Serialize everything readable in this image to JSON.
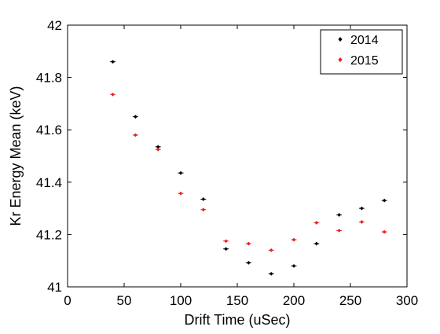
{
  "chart_data": {
    "type": "scatter",
    "title": "",
    "xlabel": "Drift Time (uSec)",
    "ylabel": "Kr Energy Mean (keV)",
    "xlim": [
      0,
      300
    ],
    "ylim": [
      41,
      42
    ],
    "xticks": [
      0,
      50,
      100,
      150,
      200,
      250,
      300
    ],
    "yticks": [
      41,
      41.2,
      41.4,
      41.6,
      41.8,
      42
    ],
    "xtick_labels": [
      "0",
      "50",
      "100",
      "150",
      "200",
      "250",
      "300"
    ],
    "ytick_labels": [
      "41",
      "41.2",
      "41.4",
      "41.6",
      "41.8",
      "42"
    ],
    "grid": false,
    "legend_position": "top-right",
    "series": [
      {
        "name": "2014",
        "color": "#000000",
        "marker": "diamond",
        "x": [
          40,
          60,
          80,
          100,
          120,
          140,
          160,
          180,
          200,
          220,
          240,
          260,
          280
        ],
        "y": [
          41.86,
          41.65,
          41.535,
          41.435,
          41.335,
          41.145,
          41.092,
          41.05,
          41.08,
          41.165,
          41.275,
          41.3,
          41.33
        ]
      },
      {
        "name": "2015",
        "color": "#e8201a",
        "marker": "diamond",
        "x": [
          40,
          60,
          80,
          100,
          120,
          140,
          160,
          180,
          200,
          220,
          240,
          260,
          280
        ],
        "y": [
          41.735,
          41.58,
          41.525,
          41.357,
          41.295,
          41.175,
          41.165,
          41.14,
          41.18,
          41.245,
          41.215,
          41.248,
          41.21
        ]
      }
    ]
  }
}
